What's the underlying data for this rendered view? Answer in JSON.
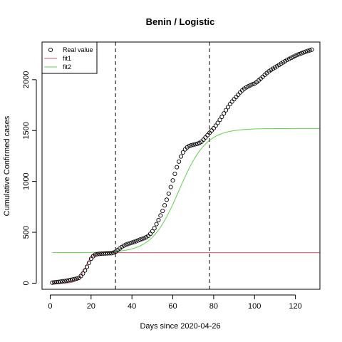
{
  "chart_data": {
    "type": "scatter",
    "title": "Benin / Logistic",
    "xlabel": "Days since 2020-04-26",
    "ylabel": "Cumulative Confirmed cases",
    "xlim": [
      -4,
      132
    ],
    "ylim": [
      -60,
      2370
    ],
    "xticks": [
      0,
      20,
      40,
      60,
      80,
      100,
      120
    ],
    "yticks": [
      0,
      500,
      1000,
      1500,
      2000
    ],
    "vlines": [
      32,
      78
    ],
    "legend": {
      "position": "top-left",
      "entries": [
        "Real value",
        "fit1",
        "fit2"
      ]
    },
    "series": [
      {
        "name": "Real value",
        "kind": "points",
        "color": "#000000",
        "x": [
          1,
          2,
          3,
          4,
          5,
          6,
          7,
          8,
          9,
          10,
          11,
          12,
          13,
          14,
          15,
          16,
          17,
          18,
          19,
          20,
          21,
          22,
          23,
          24,
          25,
          26,
          27,
          28,
          29,
          30,
          31,
          32,
          33,
          34,
          35,
          36,
          37,
          38,
          39,
          40,
          41,
          42,
          43,
          44,
          45,
          46,
          47,
          48,
          49,
          50,
          51,
          52,
          53,
          54,
          55,
          56,
          57,
          58,
          59,
          60,
          61,
          62,
          63,
          64,
          65,
          66,
          67,
          68,
          69,
          70,
          71,
          72,
          73,
          74,
          75,
          76,
          77,
          78,
          79,
          80,
          81,
          82,
          83,
          84,
          85,
          86,
          87,
          88,
          89,
          90,
          91,
          92,
          93,
          94,
          95,
          96,
          97,
          98,
          99,
          100,
          101,
          102,
          103,
          104,
          105,
          106,
          107,
          108,
          109,
          110,
          111,
          112,
          113,
          114,
          115,
          116,
          117,
          118,
          119,
          120,
          121,
          122,
          123,
          124,
          125,
          126,
          127,
          128
        ],
        "y": [
          5,
          8,
          10,
          12,
          15,
          18,
          20,
          24,
          28,
          32,
          36,
          40,
          45,
          52,
          70,
          95,
          125,
          160,
          200,
          240,
          265,
          280,
          285,
          288,
          290,
          291,
          292,
          293,
          294,
          295,
          300,
          310,
          325,
          340,
          355,
          368,
          378,
          385,
          392,
          398,
          405,
          412,
          420,
          428,
          435,
          442,
          452,
          465,
          485,
          510,
          540,
          580,
          620,
          665,
          710,
          765,
          820,
          880,
          945,
          1010,
          1075,
          1140,
          1195,
          1245,
          1285,
          1315,
          1335,
          1348,
          1355,
          1360,
          1365,
          1370,
          1378,
          1390,
          1410,
          1432,
          1455,
          1478,
          1500,
          1522,
          1548,
          1575,
          1605,
          1635,
          1668,
          1700,
          1730,
          1760,
          1785,
          1808,
          1830,
          1852,
          1875,
          1895,
          1912,
          1925,
          1935,
          1945,
          1955,
          1962,
          1975,
          1992,
          2010,
          2028,
          2048,
          2065,
          2082,
          2095,
          2108,
          2120,
          2132,
          2145,
          2158,
          2170,
          2182,
          2195,
          2205,
          2215,
          2225,
          2235,
          2245,
          2252,
          2260,
          2268,
          2275,
          2282,
          2288,
          2295
        ]
      },
      {
        "name": "fit1",
        "kind": "logistic",
        "color": "#df536b",
        "K": 300,
        "r": 0.55,
        "t0": 17,
        "x_from": 1,
        "x_to": 132
      },
      {
        "name": "fit2",
        "kind": "logistic",
        "color": "#61d04f",
        "base": 300,
        "K": 1220,
        "r": 0.15,
        "t0": 63,
        "x_from": 1,
        "x_to": 132
      }
    ]
  }
}
